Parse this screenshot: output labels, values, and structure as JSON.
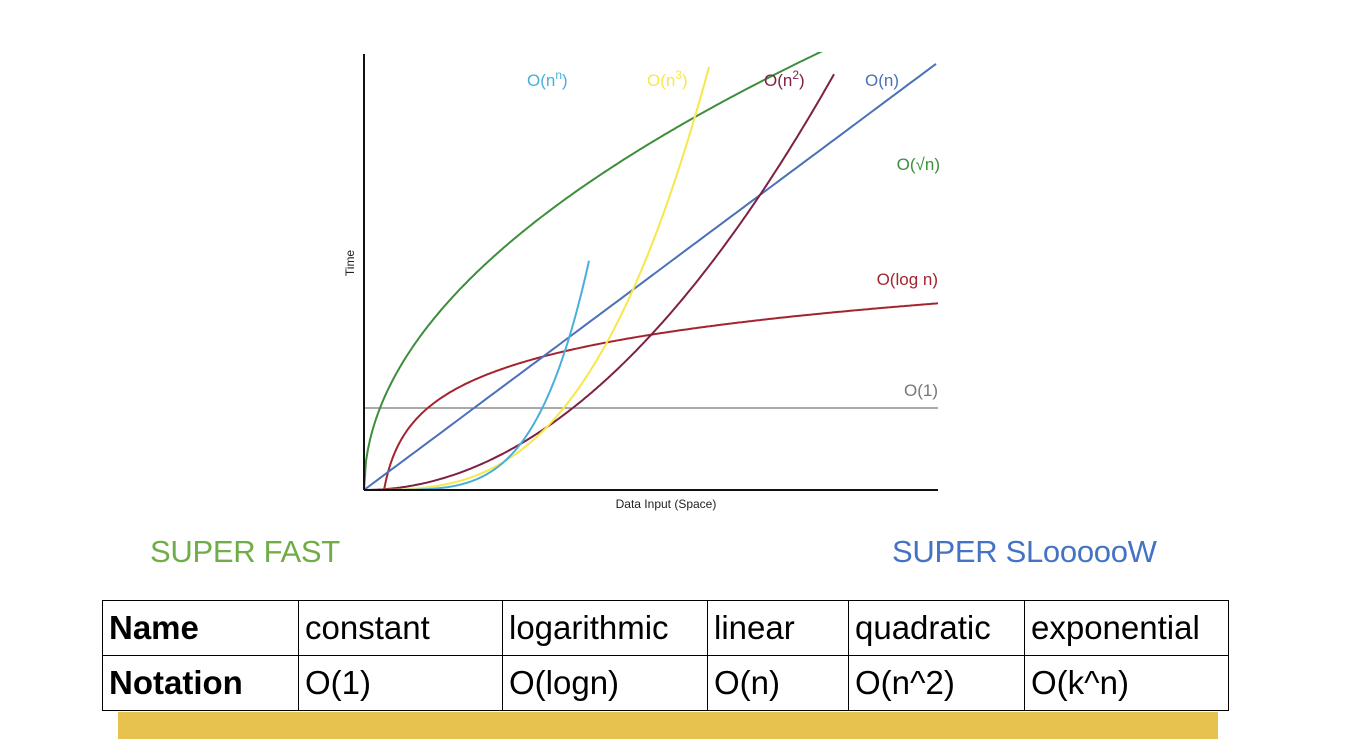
{
  "chart_data": {
    "type": "line",
    "title": "",
    "xlabel": "Data Input (Space)",
    "ylabel": "Time",
    "ticks": false,
    "grid": false,
    "series": [
      {
        "name": "O(n^n)",
        "label_base": "O(n",
        "label_sup": "n",
        "label_end": ")",
        "color": "#4aaedb",
        "kind": "nn"
      },
      {
        "name": "O(n^3)",
        "label_base": "O(n",
        "label_sup": "3",
        "label_end": ")",
        "color": "#f7e84a",
        "kind": "cubic"
      },
      {
        "name": "O(n^2)",
        "label_base": "O(n",
        "label_sup": "2",
        "label_end": ")",
        "color": "#7e2046",
        "kind": "quadratic"
      },
      {
        "name": "O(n)",
        "label_base": "O(n)",
        "label_sup": "",
        "label_end": "",
        "color": "#4a70b8",
        "kind": "linear"
      },
      {
        "name": "O(√n)",
        "label_base": "O(√n)",
        "label_sup": "",
        "label_end": "",
        "color": "#3d8e3b",
        "kind": "sqrt"
      },
      {
        "name": "O(log n)",
        "label_base": "O(log n)",
        "label_sup": "",
        "label_end": "",
        "color": "#a3242f",
        "kind": "log"
      },
      {
        "name": "O(1)",
        "label_base": "O(1)",
        "label_sup": "",
        "label_end": "",
        "color": "#777777",
        "kind": "constant"
      }
    ]
  },
  "captions": {
    "fast": "SUPER FAST",
    "slow": "SUPER SLoooooW",
    "fast_color": "#70ad47",
    "slow_color": "#4472c4"
  },
  "table": {
    "rows": [
      {
        "header": "Name",
        "cells": [
          "constant",
          "logarithmic",
          "linear",
          "quadratic",
          "exponential"
        ]
      },
      {
        "header": "Notation",
        "cells": [
          "O(1)",
          "O(logn)",
          "O(n)",
          "O(n^2)",
          "O(k^n)"
        ]
      }
    ]
  },
  "bottom_bar_color": "#e8c24f"
}
